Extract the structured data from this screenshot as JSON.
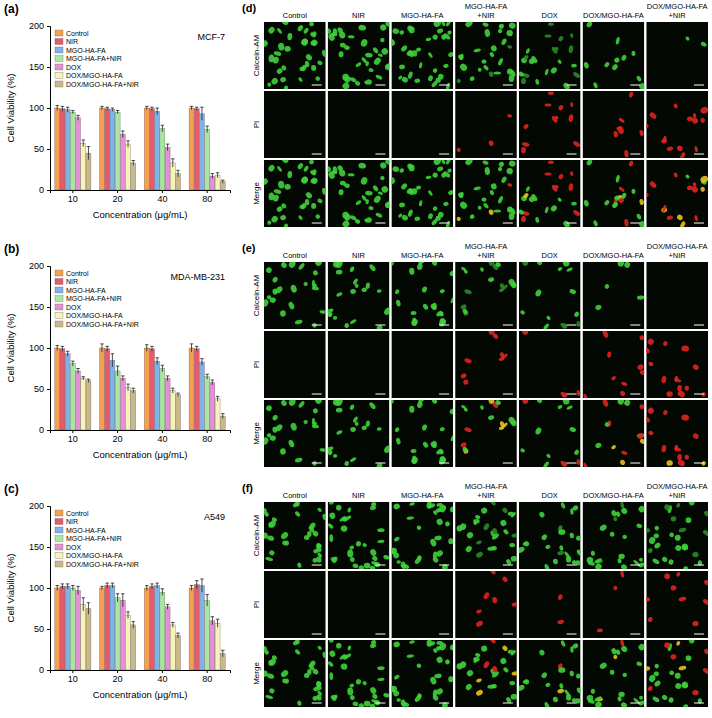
{
  "chart_data": [
    {
      "type": "bar",
      "panel": "(a)",
      "annotation": "MCF-7",
      "x_label": "Concentration (μg/mL)",
      "y_label": "Cell Viability (%)",
      "categories": [
        "10",
        "20",
        "40",
        "80"
      ],
      "ylim": [
        0,
        200
      ],
      "yticks": [
        0,
        50,
        100,
        150,
        200
      ],
      "grid": false,
      "legend": "upper left",
      "series": [
        {
          "name": "Control",
          "color": "#f5a04e",
          "values": [
            100,
            100,
            100,
            100
          ],
          "errors": [
            3,
            2,
            2,
            2
          ]
        },
        {
          "name": "NIR",
          "color": "#e8596b",
          "values": [
            99,
            99,
            99,
            99
          ],
          "errors": [
            3,
            2,
            2,
            2
          ]
        },
        {
          "name": "MGO-HA-FA",
          "color": "#7fb2e5",
          "values": [
            98,
            98,
            96,
            93
          ],
          "errors": [
            3,
            2,
            4,
            8
          ]
        },
        {
          "name": "MGO-HA-FA+NIR",
          "color": "#a8e6a1",
          "values": [
            95,
            95,
            75,
            74
          ],
          "errors": [
            2,
            2,
            4,
            4
          ]
        },
        {
          "name": "DOX",
          "color": "#e58fd6",
          "values": [
            88,
            68,
            52,
            17
          ],
          "errors": [
            3,
            4,
            4,
            3
          ]
        },
        {
          "name": "DOX/MGO-HA-FA",
          "color": "#f7f2b5",
          "values": [
            57,
            56,
            33,
            18
          ],
          "errors": [
            4,
            4,
            5,
            3
          ]
        },
        {
          "name": "DOX/MGO-HA-FA+NIR",
          "color": "#c9b88c",
          "values": [
            45,
            33,
            20,
            10
          ],
          "errors": [
            8,
            3,
            4,
            2
          ]
        }
      ]
    },
    {
      "type": "bar",
      "panel": "(b)",
      "annotation": "MDA-MB-231",
      "x_label": "Concentration (μg/mL)",
      "y_label": "Cell Viability (%)",
      "categories": [
        "10",
        "20",
        "40",
        "80"
      ],
      "ylim": [
        0,
        200
      ],
      "yticks": [
        0,
        50,
        100,
        150,
        200
      ],
      "grid": false,
      "legend": "upper left",
      "series": [
        {
          "name": "Control",
          "color": "#f5a04e",
          "values": [
            100,
            100,
            100,
            100
          ],
          "errors": [
            3,
            5,
            4,
            5
          ]
        },
        {
          "name": "NIR",
          "color": "#e8596b",
          "values": [
            99,
            99,
            99,
            99
          ],
          "errors": [
            3,
            3,
            3,
            3
          ]
        },
        {
          "name": "MGO-HA-FA",
          "color": "#7fb2e5",
          "values": [
            93,
            85,
            84,
            83
          ],
          "errors": [
            3,
            8,
            4,
            4
          ]
        },
        {
          "name": "MGO-HA-FA+NIR",
          "color": "#a8e6a1",
          "values": [
            81,
            72,
            75,
            65
          ],
          "errors": [
            3,
            6,
            4,
            3
          ]
        },
        {
          "name": "DOX",
          "color": "#e58fd6",
          "values": [
            72,
            63,
            63,
            58
          ],
          "errors": [
            3,
            3,
            3,
            3
          ]
        },
        {
          "name": "DOX/MGO-HA-FA",
          "color": "#f7f2b5",
          "values": [
            63,
            52,
            48,
            38
          ],
          "errors": [
            2,
            4,
            3,
            3
          ]
        },
        {
          "name": "DOX/MGO-HA-FA+NIR",
          "color": "#c9b88c",
          "values": [
            60,
            48,
            43,
            17
          ],
          "errors": [
            2,
            3,
            2,
            3
          ]
        }
      ]
    },
    {
      "type": "bar",
      "panel": "(c)",
      "annotation": "A549",
      "x_label": "Concentration (μg/mL)",
      "y_label": "Cell Viability (%)",
      "categories": [
        "10",
        "20",
        "40",
        "80"
      ],
      "ylim": [
        0,
        200
      ],
      "yticks": [
        0,
        50,
        100,
        150,
        200
      ],
      "grid": false,
      "legend": "upper left",
      "series": [
        {
          "name": "Control",
          "color": "#f5a04e",
          "values": [
            100,
            100,
            100,
            100
          ],
          "errors": [
            3,
            2,
            3,
            3
          ]
        },
        {
          "name": "NIR",
          "color": "#e8596b",
          "values": [
            102,
            103,
            102,
            104
          ],
          "errors": [
            3,
            3,
            3,
            5
          ]
        },
        {
          "name": "MGO-HA-FA",
          "color": "#7fb2e5",
          "values": [
            102,
            103,
            103,
            103
          ],
          "errors": [
            3,
            3,
            3,
            8
          ]
        },
        {
          "name": "MGO-HA-FA+NIR",
          "color": "#a8e6a1",
          "values": [
            100,
            88,
            95,
            85
          ],
          "errors": [
            3,
            5,
            4,
            7
          ]
        },
        {
          "name": "DOX",
          "color": "#e58fd6",
          "values": [
            97,
            85,
            77,
            60
          ],
          "errors": [
            5,
            8,
            3,
            5
          ]
        },
        {
          "name": "DOX/MGO-HA-FA",
          "color": "#f7f2b5",
          "values": [
            80,
            67,
            55,
            57
          ],
          "errors": [
            8,
            4,
            3,
            5
          ]
        },
        {
          "name": "DOX/MGO-HA-FA+NIR",
          "color": "#c9b88c",
          "values": [
            75,
            55,
            42,
            20
          ],
          "errors": [
            7,
            4,
            3,
            4
          ]
        }
      ]
    }
  ],
  "micrographs": [
    {
      "panel": "(d)",
      "columns": [
        "Control",
        "NIR",
        "MGO-HA-FA",
        "MGO-HA-FA+NIR",
        "DOX",
        "DOX/MGO-HA-FA",
        "DOX/MGO-HA-FA+NIR"
      ],
      "rows": [
        "Calcein-AM",
        "PI",
        "Merge"
      ]
    },
    {
      "panel": "(e)",
      "columns": [
        "Control",
        "NIR",
        "MGO-HA-FA",
        "MGO-HA-FA+NIR",
        "DOX",
        "DOX/MGO-HA-FA",
        "DOX/MGO-HA-FA+NIR"
      ],
      "rows": [
        "Calcein-AM",
        "PI",
        "Merge"
      ]
    },
    {
      "panel": "(f)",
      "columns": [
        "Control",
        "NIR",
        "MGO-HA-FA",
        "MGO-HA-FA+NIR",
        "DOX",
        "DOX/MGO-HA-FA",
        "DOX/MGO-HA-FA+NIR"
      ],
      "rows": [
        "Calcein-AM",
        "PI",
        "Merge"
      ]
    }
  ]
}
